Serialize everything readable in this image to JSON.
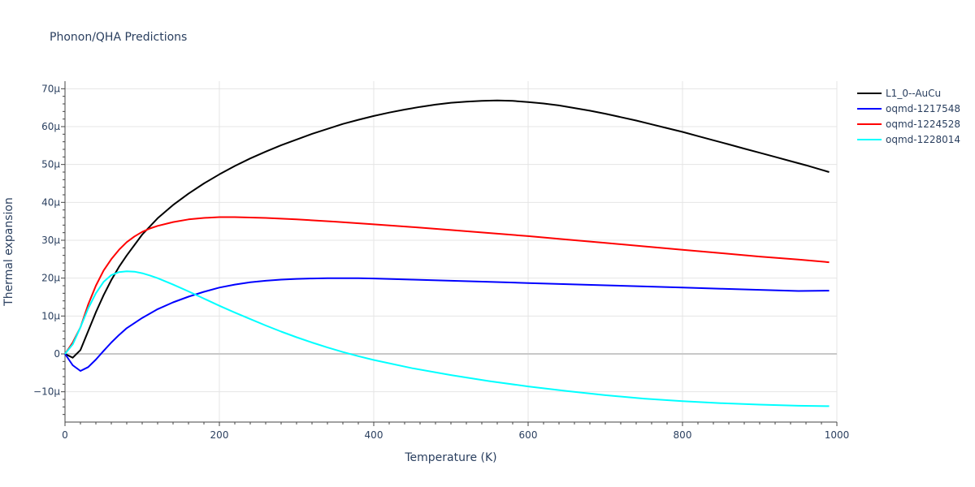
{
  "chart_data": {
    "type": "line",
    "title": "Phonon/QHA Predictions",
    "xlabel": "Temperature (K)",
    "ylabel": "Thermal expansion",
    "xlim": [
      0,
      1000
    ],
    "ylim": [
      -18,
      72
    ],
    "x_ticks": [
      0,
      200,
      400,
      600,
      800,
      1000
    ],
    "x_tick_labels": [
      "0",
      "200",
      "400",
      "600",
      "800",
      "1000"
    ],
    "y_ticks": [
      -10,
      0,
      10,
      20,
      30,
      40,
      50,
      60,
      70
    ],
    "y_tick_labels": [
      "−10μ",
      "0",
      "10μ",
      "20μ",
      "30μ",
      "40μ",
      "50μ",
      "60μ",
      "70μ"
    ],
    "y_unit": "μ (×1e-6)",
    "grid": true,
    "legend_position": "top-right",
    "series": [
      {
        "name": "L1_0--AuCu",
        "color": "#000000",
        "x": [
          0,
          10,
          20,
          30,
          40,
          50,
          60,
          70,
          80,
          100,
          120,
          140,
          160,
          180,
          200,
          220,
          240,
          260,
          280,
          300,
          320,
          340,
          360,
          380,
          400,
          420,
          440,
          460,
          480,
          500,
          520,
          540,
          560,
          580,
          600,
          620,
          640,
          660,
          680,
          700,
          720,
          740,
          760,
          780,
          800,
          820,
          840,
          860,
          880,
          900,
          920,
          940,
          960,
          980,
          990
        ],
        "y": [
          0,
          -1,
          1,
          6,
          11,
          15.5,
          19.5,
          23,
          26,
          31.5,
          35.8,
          39.3,
          42.3,
          45,
          47.4,
          49.6,
          51.6,
          53.4,
          55.1,
          56.6,
          58.1,
          59.4,
          60.7,
          61.8,
          62.8,
          63.7,
          64.5,
          65.2,
          65.8,
          66.3,
          66.6,
          66.8,
          66.9,
          66.8,
          66.5,
          66.1,
          65.6,
          64.9,
          64.2,
          63.4,
          62.5,
          61.6,
          60.6,
          59.6,
          58.6,
          57.5,
          56.4,
          55.3,
          54.2,
          53.1,
          52,
          50.9,
          49.8,
          48.6,
          48
        ]
      },
      {
        "name": "oqmd-1217548",
        "color": "#0000ff",
        "x": [
          0,
          10,
          20,
          30,
          40,
          50,
          60,
          70,
          80,
          100,
          120,
          140,
          160,
          180,
          200,
          220,
          240,
          260,
          280,
          300,
          320,
          340,
          360,
          380,
          400,
          450,
          500,
          550,
          600,
          650,
          700,
          750,
          800,
          850,
          900,
          950,
          990
        ],
        "y": [
          0,
          -3,
          -4.5,
          -3.5,
          -1.5,
          0.8,
          3,
          5,
          6.8,
          9.5,
          11.8,
          13.6,
          15.1,
          16.4,
          17.5,
          18.3,
          18.9,
          19.3,
          19.6,
          19.8,
          19.9,
          20,
          20,
          20,
          19.9,
          19.6,
          19.3,
          19,
          18.7,
          18.4,
          18.1,
          17.8,
          17.5,
          17.2,
          16.9,
          16.6,
          16.7
        ]
      },
      {
        "name": "oqmd-1224528",
        "color": "#ff0000",
        "x": [
          0,
          10,
          20,
          30,
          40,
          50,
          60,
          70,
          80,
          90,
          100,
          110,
          120,
          140,
          160,
          180,
          200,
          220,
          240,
          260,
          280,
          300,
          350,
          400,
          450,
          500,
          550,
          600,
          650,
          700,
          750,
          800,
          850,
          900,
          950,
          990
        ],
        "y": [
          0,
          3,
          7,
          13,
          18,
          22,
          25,
          27.5,
          29.5,
          31,
          32.2,
          33.1,
          33.8,
          34.8,
          35.5,
          35.9,
          36.1,
          36.1,
          36,
          35.9,
          35.7,
          35.5,
          34.9,
          34.2,
          33.5,
          32.7,
          31.9,
          31.1,
          30.2,
          29.3,
          28.4,
          27.5,
          26.6,
          25.7,
          24.9,
          24.2
        ]
      },
      {
        "name": "oqmd-1228014",
        "color": "#00ffff",
        "x": [
          0,
          10,
          20,
          30,
          40,
          50,
          60,
          70,
          80,
          90,
          100,
          110,
          120,
          140,
          160,
          180,
          200,
          220,
          240,
          260,
          280,
          300,
          320,
          340,
          360,
          380,
          400,
          450,
          500,
          550,
          600,
          650,
          700,
          750,
          800,
          850,
          900,
          950,
          990
        ],
        "y": [
          0,
          2.5,
          7,
          12,
          16,
          19,
          20.8,
          21.6,
          21.8,
          21.7,
          21.3,
          20.7,
          20,
          18.3,
          16.5,
          14.6,
          12.7,
          10.9,
          9.2,
          7.5,
          5.9,
          4.4,
          3,
          1.7,
          0.5,
          -0.6,
          -1.6,
          -3.8,
          -5.6,
          -7.2,
          -8.6,
          -9.8,
          -10.9,
          -11.8,
          -12.5,
          -13,
          -13.4,
          -13.7,
          -13.8
        ]
      }
    ]
  }
}
